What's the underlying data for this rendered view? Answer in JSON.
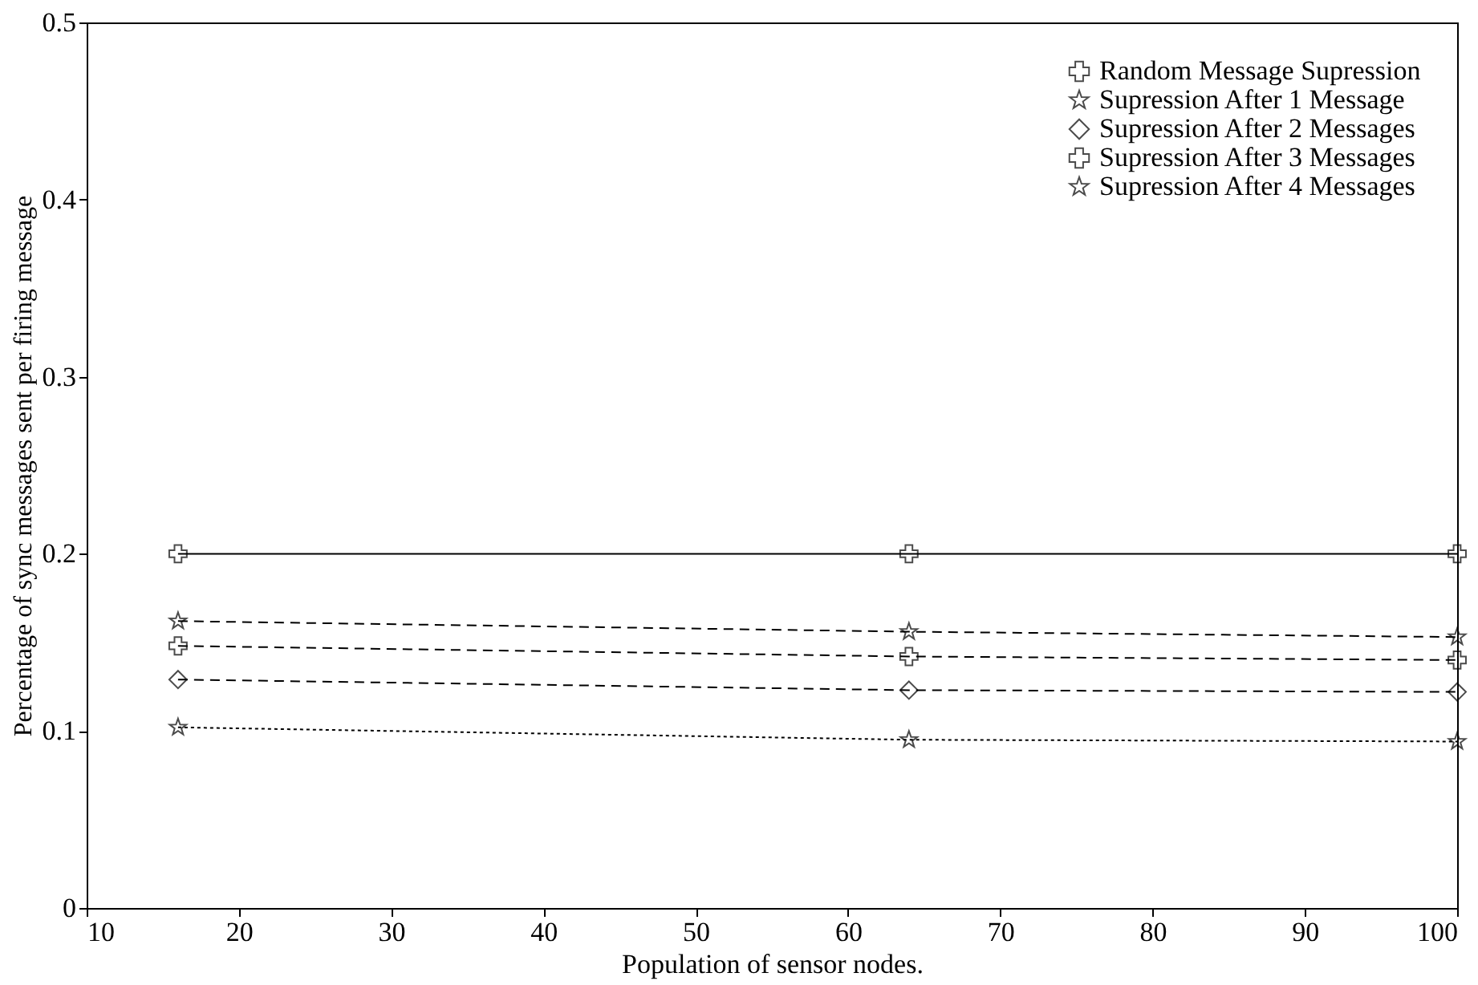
{
  "chart_data": {
    "type": "line",
    "xlabel": "Population of sensor nodes.",
    "ylabel": "Percentage of sync messages sent per firing message",
    "xlim": [
      10,
      100
    ],
    "xticks": [
      10,
      20,
      30,
      40,
      50,
      60,
      70,
      80,
      90,
      100
    ],
    "ylim": [
      0,
      0.5
    ],
    "yticks": [
      0,
      0.1,
      0.2,
      0.3,
      0.4,
      0.5
    ],
    "grid": false,
    "legend": "top right",
    "series": [
      {
        "name": "Random Message Supression",
        "color": "#000000",
        "x": [
          16,
          64,
          100
        ],
        "values": [
          0.2,
          0.2,
          0.2
        ],
        "marker": "cross",
        "line_style": "solid"
      },
      {
        "name": "Supression After 1 Message",
        "color": "#000000",
        "x": [
          16,
          64,
          100
        ],
        "values": [
          0.102,
          0.095,
          0.094
        ],
        "marker": "star",
        "line_style": "dotted"
      },
      {
        "name": "Supression After 2 Messages",
        "color": "#000000",
        "x": [
          16,
          64,
          100
        ],
        "values": [
          0.129,
          0.123,
          0.122
        ],
        "marker": "diamond",
        "line_style": "dashed"
      },
      {
        "name": "Supression After 3 Messages",
        "color": "#000000",
        "x": [
          16,
          64,
          100
        ],
        "values": [
          0.148,
          0.142,
          0.14
        ],
        "marker": "cross",
        "line_style": "dashed"
      },
      {
        "name": "Supression After 4 Messages",
        "color": "#000000",
        "x": [
          16,
          64,
          100
        ],
        "values": [
          0.162,
          0.156,
          0.153
        ],
        "marker": "star",
        "line_style": "dashed"
      }
    ]
  }
}
